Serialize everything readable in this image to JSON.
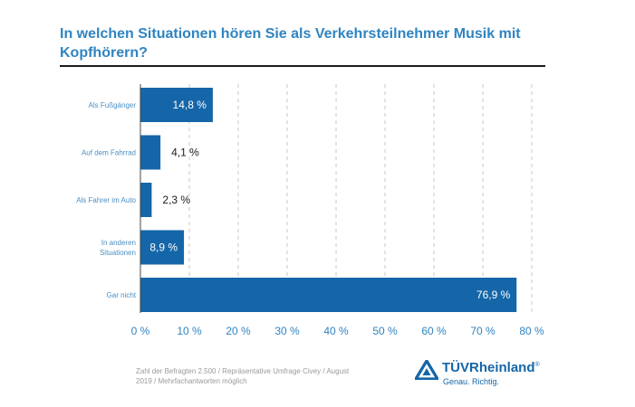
{
  "chart_data": {
    "type": "bar",
    "orientation": "horizontal",
    "title": "In welchen Situationen hören Sie als Verkehrsteilnehmer Musik mit Kopfhörern?",
    "categories": [
      [
        "Als Fußgänger"
      ],
      [
        "Auf dem Fahrrad"
      ],
      [
        "Als Fahrer im Auto"
      ],
      [
        "In anderen",
        "Situationen"
      ],
      [
        "Gar nicht"
      ]
    ],
    "values": [
      14.8,
      4.1,
      2.3,
      8.9,
      76.9
    ],
    "value_labels": [
      "14,8 %",
      "4,1 %",
      "2,3 %",
      "8,9 %",
      "76,9 %"
    ],
    "xlim": [
      0,
      80
    ],
    "xticks": [
      0,
      10,
      20,
      30,
      40,
      50,
      60,
      70,
      80
    ],
    "xtick_labels": [
      "0 %",
      "10 %",
      "20 %",
      "30 %",
      "40 %",
      "50 %",
      "60 %",
      "70 %",
      "80 %"
    ],
    "grid": "vertical dashed",
    "bar_color": "#1466a8"
  },
  "footnote": "Zahl der Befragten 2.500 / Repräsentative Umfrage Civey / August 2019 / Mehrfachantworten möglich",
  "logo": {
    "brand": "TÜVRheinland",
    "registered": "®",
    "tagline": "Genau. Richtig.",
    "icon": "triangle-logo-icon"
  },
  "colors": {
    "title": "#2f84c1",
    "category_label": "#4a8fc4",
    "tick_label": "#2f84c1",
    "brand": "#1466a8"
  }
}
